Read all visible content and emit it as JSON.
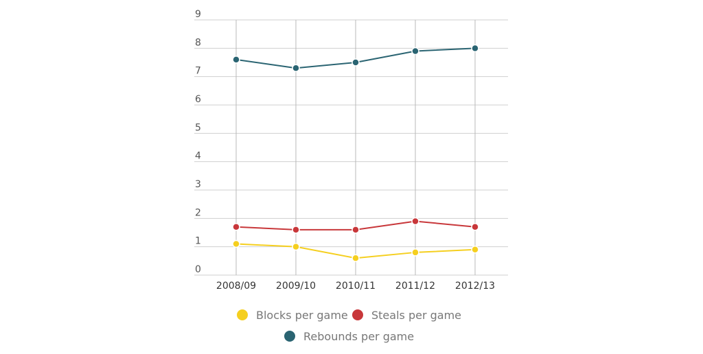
{
  "chart_data": {
    "type": "line",
    "title": "",
    "xlabel": "",
    "ylabel": "",
    "categories": [
      "2008/09",
      "2009/10",
      "2010/11",
      "2011/12",
      "2012/13"
    ],
    "y_ticks": [
      "0",
      "1",
      "2",
      "3",
      "4",
      "5",
      "6",
      "7",
      "8",
      "9"
    ],
    "ylim": [
      0,
      9
    ],
    "grid": true,
    "legend_position": "bottom",
    "series": [
      {
        "name": "Blocks per game",
        "color": "#f5cf1f",
        "values": [
          1.1,
          1.0,
          0.6,
          0.8,
          0.9
        ]
      },
      {
        "name": "Steals per game",
        "color": "#c8373a",
        "values": [
          1.7,
          1.6,
          1.6,
          1.9,
          1.7
        ]
      },
      {
        "name": "Rebounds per game",
        "color": "#2a6472",
        "values": [
          7.6,
          7.3,
          7.5,
          7.9,
          8.0
        ]
      }
    ]
  }
}
